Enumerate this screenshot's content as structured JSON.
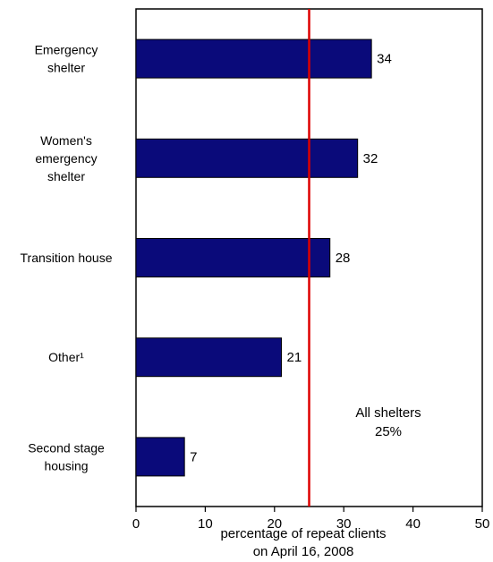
{
  "chart_data": {
    "type": "bar",
    "orientation": "horizontal",
    "categories": [
      [
        "Emergency",
        "shelter"
      ],
      [
        "Women's",
        "emergency",
        "shelter"
      ],
      [
        "Transition house"
      ],
      [
        "Other¹"
      ],
      [
        "Second stage",
        "housing"
      ]
    ],
    "values": [
      34,
      32,
      28,
      21,
      7
    ],
    "data_labels": [
      "34",
      "32",
      "28",
      "21",
      "7"
    ],
    "xlim": [
      0,
      50
    ],
    "xticks": [
      0,
      10,
      20,
      30,
      40,
      50
    ],
    "xlabel_lines": [
      "percentage of repeat clients",
      "on April 16, 2008"
    ],
    "reference_line": {
      "value": 25,
      "label_lines": [
        "All shelters",
        "25%"
      ],
      "color": "#dd0000"
    },
    "bar_color": "#0a0a7a",
    "grid": false
  }
}
